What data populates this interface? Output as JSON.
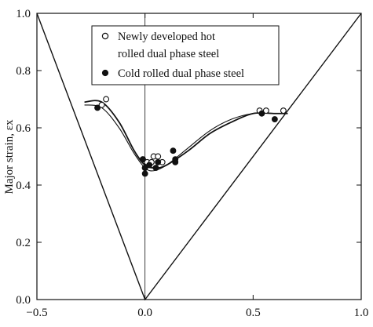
{
  "chart_data": {
    "type": "scatter",
    "title": "",
    "xlabel": "",
    "ylabel": "Major strain, εx",
    "xlim": [
      -0.5,
      1.0
    ],
    "ylim": [
      0.0,
      1.0
    ],
    "x_ticks": [
      "-0.5",
      "0.0",
      "0.5",
      "1.0"
    ],
    "y_ticks": [
      "0.0",
      "0.2",
      "0.4",
      "0.6",
      "0.8",
      "1.0"
    ],
    "grid": false,
    "legend_position": "top",
    "legend": {
      "line1": "Newly developed hot",
      "line2": "rolled dual phase steel",
      "line3": "Cold rolled dual phase steel"
    },
    "reference_lines": [
      {
        "points": [
          [
            -0.5,
            1.0
          ],
          [
            0.0,
            0.0
          ],
          [
            1.0,
            1.0
          ]
        ]
      },
      {
        "points": [
          [
            0.0,
            0.0
          ],
          [
            0.0,
            1.0
          ]
        ]
      }
    ],
    "series": [
      {
        "name": "Newly developed hot rolled dual phase steel",
        "marker": "open-circle",
        "points": [
          [
            -0.2,
            0.68
          ],
          [
            -0.18,
            0.7
          ],
          [
            -0.01,
            0.49
          ],
          [
            0.0,
            0.46
          ],
          [
            0.01,
            0.48
          ],
          [
            0.03,
            0.48
          ],
          [
            0.04,
            0.5
          ],
          [
            0.06,
            0.5
          ],
          [
            0.08,
            0.48
          ],
          [
            0.53,
            0.66
          ],
          [
            0.56,
            0.66
          ],
          [
            0.64,
            0.66
          ]
        ],
        "fit": [
          [
            -0.28,
            0.68
          ],
          [
            -0.2,
            0.67
          ],
          [
            -0.12,
            0.6
          ],
          [
            -0.05,
            0.51
          ],
          [
            0.0,
            0.46
          ],
          [
            0.04,
            0.45
          ],
          [
            0.1,
            0.47
          ],
          [
            0.2,
            0.53
          ],
          [
            0.3,
            0.59
          ],
          [
            0.4,
            0.63
          ],
          [
            0.5,
            0.65
          ],
          [
            0.6,
            0.65
          ],
          [
            0.66,
            0.65
          ]
        ]
      },
      {
        "name": "Cold rolled dual phase steel",
        "marker": "filled-circle",
        "points": [
          [
            -0.22,
            0.67
          ],
          [
            -0.01,
            0.49
          ],
          [
            0.0,
            0.46
          ],
          [
            0.0,
            0.44
          ],
          [
            0.02,
            0.47
          ],
          [
            0.05,
            0.46
          ],
          [
            0.06,
            0.48
          ],
          [
            0.13,
            0.52
          ],
          [
            0.14,
            0.49
          ],
          [
            0.14,
            0.48
          ],
          [
            0.54,
            0.65
          ],
          [
            0.6,
            0.63
          ]
        ],
        "fit": [
          [
            -0.28,
            0.69
          ],
          [
            -0.2,
            0.69
          ],
          [
            -0.12,
            0.62
          ],
          [
            -0.05,
            0.52
          ],
          [
            0.0,
            0.47
          ],
          [
            0.05,
            0.46
          ],
          [
            0.1,
            0.47
          ],
          [
            0.2,
            0.52
          ],
          [
            0.3,
            0.58
          ],
          [
            0.4,
            0.62
          ],
          [
            0.5,
            0.65
          ],
          [
            0.6,
            0.65
          ],
          [
            0.66,
            0.65
          ]
        ]
      }
    ]
  }
}
